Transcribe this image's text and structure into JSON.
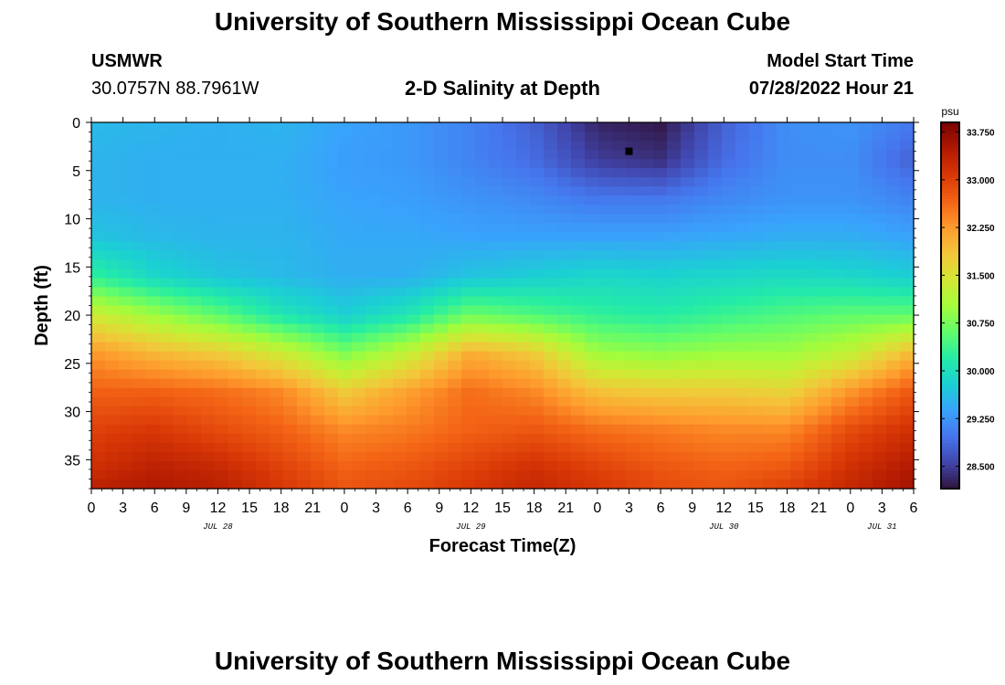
{
  "page_title": "University of Southern Mississippi Ocean Cube",
  "station": {
    "name": "USMWR",
    "coords": "30.0757N  88.7961W"
  },
  "plot_title": "2-D Salinity at Depth",
  "model_start": {
    "label": "Model Start Time",
    "value": "07/28/2022 Hour 21"
  },
  "footer_title": "University of Southern Mississippi Ocean Cube",
  "chart_data": {
    "type": "heatmap",
    "title": "2-D Salinity at Depth",
    "xlabel": "Forecast Time(Z)",
    "ylabel": "Depth (ft)",
    "x_hours_range": [
      0,
      78
    ],
    "y_range": [
      0,
      38
    ],
    "y_inverted": true,
    "x_tick_labels": [
      "0",
      "3",
      "6",
      "9",
      "12",
      "15",
      "18",
      "21",
      "0",
      "3",
      "6",
      "9",
      "12",
      "15",
      "18",
      "21",
      "0",
      "3",
      "6",
      "9",
      "12",
      "15",
      "18",
      "21",
      "0",
      "3",
      "6"
    ],
    "y_ticks": [
      0,
      5,
      10,
      15,
      20,
      25,
      30,
      35
    ],
    "y_tick_labels": [
      "0",
      "5",
      "10",
      "15",
      "20",
      "25",
      "30",
      "35"
    ],
    "date_labels": [
      {
        "label": "JUL 28",
        "hour": 12
      },
      {
        "label": "JUL 29",
        "hour": 36
      },
      {
        "label": "JUL 30",
        "hour": 60
      },
      {
        "label": "JUL 31",
        "hour": 75
      }
    ],
    "marker": {
      "hour": 51,
      "depth": 3
    },
    "colorbar": {
      "unit": "psu",
      "min": 28.15,
      "max": 33.9,
      "tick_values": [
        33.75,
        33.0,
        32.25,
        31.5,
        30.75,
        30.0,
        29.25,
        28.5
      ],
      "tick_labels": [
        "33.750",
        "33.000",
        "32.250",
        "31.500",
        "30.750",
        "30.000",
        "29.250",
        "28.500"
      ],
      "colors": [
        "#30123b",
        "#4145ab",
        "#4675ed",
        "#39a2fc",
        "#1bcfd4",
        "#24eca6",
        "#61fc6c",
        "#a4fc3b",
        "#d1e834",
        "#f3c63a",
        "#fe9b2d",
        "#f36315",
        "#d93806",
        "#b11901",
        "#7a0403"
      ]
    },
    "grid_hours": [
      0,
      6,
      12,
      18,
      24,
      30,
      36,
      42,
      48,
      54,
      60,
      66,
      72,
      78
    ],
    "grid_depths": [
      0,
      4,
      8,
      12,
      16,
      20,
      24,
      28,
      32,
      36,
      38
    ],
    "salinity_grid": [
      [
        29.6,
        29.55,
        29.5,
        29.55,
        29.4,
        29.3,
        29.1,
        28.8,
        28.3,
        28.2,
        28.8,
        29.2,
        29.25,
        29.0
      ],
      [
        29.55,
        29.5,
        29.5,
        29.5,
        29.35,
        29.3,
        29.1,
        28.9,
        28.5,
        28.4,
        28.9,
        29.2,
        29.2,
        28.8
      ],
      [
        29.55,
        29.5,
        29.5,
        29.5,
        29.4,
        29.35,
        29.25,
        29.15,
        29.0,
        29.0,
        29.15,
        29.25,
        29.25,
        29.1
      ],
      [
        29.7,
        29.6,
        29.55,
        29.55,
        29.45,
        29.45,
        29.4,
        29.4,
        29.4,
        29.4,
        29.45,
        29.5,
        29.5,
        29.4
      ],
      [
        30.3,
        29.9,
        29.7,
        29.6,
        29.5,
        29.5,
        29.7,
        29.8,
        29.9,
        29.85,
        29.9,
        29.95,
        29.9,
        29.8
      ],
      [
        31.4,
        31.0,
        30.6,
        30.1,
        29.8,
        30.1,
        30.7,
        30.5,
        30.3,
        30.2,
        30.35,
        30.5,
        30.6,
        30.6
      ],
      [
        32.3,
        32.0,
        31.8,
        31.4,
        30.8,
        31.3,
        32.1,
        31.8,
        31.0,
        30.9,
        31.0,
        31.0,
        31.3,
        32.0
      ],
      [
        32.7,
        32.7,
        32.6,
        32.4,
        31.8,
        32.2,
        32.6,
        32.4,
        31.9,
        31.8,
        31.8,
        31.7,
        32.3,
        32.8
      ],
      [
        33.0,
        33.1,
        32.9,
        32.7,
        32.4,
        32.5,
        32.7,
        32.8,
        32.6,
        32.5,
        32.4,
        32.4,
        32.9,
        33.2
      ],
      [
        33.2,
        33.4,
        33.3,
        33.0,
        32.7,
        32.8,
        33.0,
        33.2,
        33.0,
        32.8,
        32.7,
        32.8,
        33.2,
        33.5
      ],
      [
        33.4,
        33.5,
        33.4,
        33.1,
        32.8,
        32.9,
        33.1,
        33.3,
        33.1,
        32.9,
        32.8,
        33.0,
        33.3,
        33.6
      ]
    ]
  }
}
